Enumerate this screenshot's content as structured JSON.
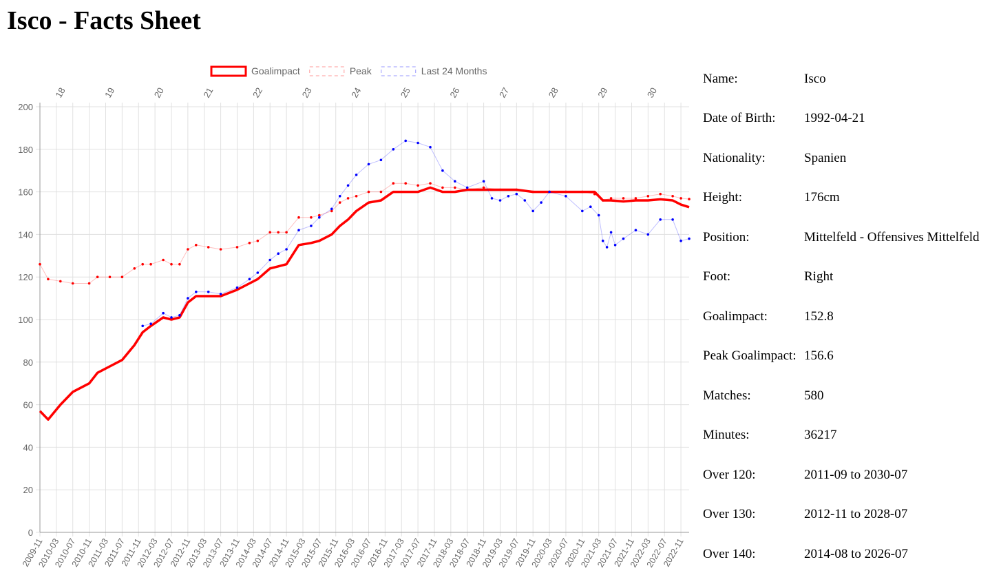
{
  "page_title": "Isco - Facts Sheet",
  "facts": [
    {
      "label": "Name:",
      "value": "Isco"
    },
    {
      "label": "Date of Birth:",
      "value": "1992-04-21"
    },
    {
      "label": "Nationality:",
      "value": "Spanien"
    },
    {
      "label": "Height:",
      "value": "176cm"
    },
    {
      "label": "Position:",
      "value": "Mittelfeld - Offensives Mittelfeld"
    },
    {
      "label": "Foot:",
      "value": "Right"
    },
    {
      "label": "Goalimpact:",
      "value": "152.8"
    },
    {
      "label": "Peak Goalimpact:",
      "value": "156.6"
    },
    {
      "label": "Matches:",
      "value": "580"
    },
    {
      "label": "Minutes:",
      "value": "36217"
    },
    {
      "label": "Over 120:",
      "value": "2011-09 to 2030-07"
    },
    {
      "label": "Over 130:",
      "value": "2012-11 to 2028-07"
    },
    {
      "label": "Over 140:",
      "value": "2014-08 to 2026-07"
    }
  ],
  "chart_data": {
    "type": "line",
    "x_start": "2009-11",
    "x_end": "2023-01",
    "x_tick_labels": [
      "2009-11",
      "2010-03",
      "2010-07",
      "2010-11",
      "2011-03",
      "2011-07",
      "2011-11",
      "2012-03",
      "2012-07",
      "2012-11",
      "2013-03",
      "2013-07",
      "2013-11",
      "2014-03",
      "2014-07",
      "2014-11",
      "2015-03",
      "2015-07",
      "2015-11",
      "2016-03",
      "2016-07",
      "2016-11",
      "2017-03",
      "2017-07",
      "2017-11",
      "2018-03",
      "2018-07",
      "2018-11",
      "2019-03",
      "2019-07",
      "2019-11",
      "2020-03",
      "2020-07",
      "2020-11",
      "2021-03",
      "2021-07",
      "2021-11",
      "2022-03",
      "2022-07",
      "2022-11"
    ],
    "age_axis": [
      {
        "label": "18",
        "date": "2010-04"
      },
      {
        "label": "19",
        "date": "2011-04"
      },
      {
        "label": "20",
        "date": "2012-04"
      },
      {
        "label": "21",
        "date": "2013-04"
      },
      {
        "label": "22",
        "date": "2014-04"
      },
      {
        "label": "23",
        "date": "2015-04"
      },
      {
        "label": "24",
        "date": "2016-04"
      },
      {
        "label": "25",
        "date": "2017-04"
      },
      {
        "label": "26",
        "date": "2018-04"
      },
      {
        "label": "27",
        "date": "2019-04"
      },
      {
        "label": "28",
        "date": "2020-04"
      },
      {
        "label": "29",
        "date": "2021-04"
      },
      {
        "label": "30",
        "date": "2022-04"
      }
    ],
    "ylim": [
      0,
      200
    ],
    "y_ticks": [
      0,
      20,
      40,
      60,
      80,
      100,
      120,
      140,
      160,
      180,
      200
    ],
    "grid": true,
    "legend_position": "top",
    "series": [
      {
        "name": "Goalimpact",
        "color": "#ff0000",
        "style": "solid-thick",
        "points": [
          [
            "2009-11",
            57
          ],
          [
            "2010-01",
            53
          ],
          [
            "2010-04",
            60
          ],
          [
            "2010-07",
            66
          ],
          [
            "2010-11",
            70
          ],
          [
            "2011-01",
            75
          ],
          [
            "2011-04",
            78
          ],
          [
            "2011-07",
            81
          ],
          [
            "2011-10",
            88
          ],
          [
            "2011-12",
            94
          ],
          [
            "2012-02",
            97
          ],
          [
            "2012-05",
            101
          ],
          [
            "2012-07",
            100
          ],
          [
            "2012-09",
            101
          ],
          [
            "2012-11",
            108
          ],
          [
            "2013-01",
            111
          ],
          [
            "2013-04",
            111
          ],
          [
            "2013-07",
            111
          ],
          [
            "2013-11",
            114
          ],
          [
            "2014-02",
            117
          ],
          [
            "2014-04",
            119
          ],
          [
            "2014-07",
            124
          ],
          [
            "2014-09",
            125
          ],
          [
            "2014-11",
            126
          ],
          [
            "2015-02",
            135
          ],
          [
            "2015-05",
            136
          ],
          [
            "2015-07",
            137
          ],
          [
            "2015-10",
            140
          ],
          [
            "2015-12",
            144
          ],
          [
            "2016-02",
            147
          ],
          [
            "2016-04",
            151
          ],
          [
            "2016-07",
            155
          ],
          [
            "2016-10",
            156
          ],
          [
            "2017-01",
            160
          ],
          [
            "2017-04",
            160
          ],
          [
            "2017-07",
            160
          ],
          [
            "2017-10",
            162
          ],
          [
            "2018-01",
            160
          ],
          [
            "2018-04",
            160
          ],
          [
            "2018-07",
            161
          ],
          [
            "2018-11",
            161
          ],
          [
            "2019-03",
            161
          ],
          [
            "2019-07",
            161
          ],
          [
            "2019-11",
            160
          ],
          [
            "2020-03",
            160
          ],
          [
            "2020-07",
            160
          ],
          [
            "2020-11",
            160
          ],
          [
            "2021-02",
            160
          ],
          [
            "2021-04",
            156
          ],
          [
            "2021-06",
            156
          ],
          [
            "2021-09",
            155.5
          ],
          [
            "2021-12",
            156
          ],
          [
            "2022-03",
            156
          ],
          [
            "2022-06",
            156.5
          ],
          [
            "2022-09",
            156
          ],
          [
            "2022-11",
            154
          ],
          [
            "2023-01",
            152.8
          ]
        ]
      },
      {
        "name": "Peak",
        "color": "#ff0000",
        "style": "dotted",
        "points": [
          [
            "2009-11",
            126
          ],
          [
            "2010-01",
            119
          ],
          [
            "2010-04",
            118
          ],
          [
            "2010-07",
            117
          ],
          [
            "2010-11",
            117
          ],
          [
            "2011-01",
            120
          ],
          [
            "2011-04",
            120
          ],
          [
            "2011-07",
            120
          ],
          [
            "2011-10",
            124
          ],
          [
            "2011-12",
            126
          ],
          [
            "2012-02",
            126
          ],
          [
            "2012-05",
            128
          ],
          [
            "2012-07",
            126
          ],
          [
            "2012-09",
            126
          ],
          [
            "2012-11",
            133
          ],
          [
            "2013-01",
            135
          ],
          [
            "2013-04",
            134
          ],
          [
            "2013-07",
            133
          ],
          [
            "2013-11",
            134
          ],
          [
            "2014-02",
            136
          ],
          [
            "2014-04",
            137
          ],
          [
            "2014-07",
            141
          ],
          [
            "2014-09",
            141
          ],
          [
            "2014-11",
            141
          ],
          [
            "2015-02",
            148
          ],
          [
            "2015-05",
            148
          ],
          [
            "2015-07",
            149
          ],
          [
            "2015-10",
            151
          ],
          [
            "2015-12",
            155
          ],
          [
            "2016-02",
            157
          ],
          [
            "2016-04",
            158
          ],
          [
            "2016-07",
            160
          ],
          [
            "2016-10",
            160
          ],
          [
            "2017-01",
            164
          ],
          [
            "2017-04",
            164
          ],
          [
            "2017-07",
            163
          ],
          [
            "2017-10",
            164
          ],
          [
            "2018-01",
            162
          ],
          [
            "2018-04",
            162
          ],
          [
            "2018-07",
            161
          ],
          [
            "2018-11",
            162
          ],
          [
            "2019-03",
            161
          ],
          [
            "2019-07",
            161
          ],
          [
            "2019-11",
            160
          ],
          [
            "2020-03",
            160
          ],
          [
            "2020-07",
            160
          ],
          [
            "2020-11",
            160
          ],
          [
            "2021-02",
            159
          ],
          [
            "2021-04",
            156
          ],
          [
            "2021-06",
            157
          ],
          [
            "2021-09",
            157
          ],
          [
            "2021-12",
            157
          ],
          [
            "2022-03",
            158
          ],
          [
            "2022-06",
            159
          ],
          [
            "2022-09",
            158
          ],
          [
            "2022-11",
            157
          ],
          [
            "2023-01",
            156.6
          ]
        ]
      },
      {
        "name": "Last 24 Months",
        "color": "#0000ff",
        "style": "dotted",
        "points": [
          [
            "2011-12",
            97
          ],
          [
            "2012-02",
            98
          ],
          [
            "2012-05",
            103
          ],
          [
            "2012-07",
            101
          ],
          [
            "2012-09",
            102
          ],
          [
            "2012-11",
            110
          ],
          [
            "2013-01",
            113
          ],
          [
            "2013-04",
            113
          ],
          [
            "2013-07",
            112
          ],
          [
            "2013-11",
            115
          ],
          [
            "2014-02",
            119
          ],
          [
            "2014-04",
            122
          ],
          [
            "2014-07",
            128
          ],
          [
            "2014-09",
            131
          ],
          [
            "2014-11",
            133
          ],
          [
            "2015-02",
            142
          ],
          [
            "2015-05",
            144
          ],
          [
            "2015-07",
            148
          ],
          [
            "2015-10",
            152
          ],
          [
            "2015-12",
            158
          ],
          [
            "2016-02",
            163
          ],
          [
            "2016-04",
            168
          ],
          [
            "2016-07",
            173
          ],
          [
            "2016-10",
            175
          ],
          [
            "2017-01",
            180
          ],
          [
            "2017-04",
            184
          ],
          [
            "2017-07",
            183
          ],
          [
            "2017-10",
            181
          ],
          [
            "2018-01",
            170
          ],
          [
            "2018-04",
            165
          ],
          [
            "2018-07",
            162
          ],
          [
            "2018-11",
            165
          ],
          [
            "2019-01",
            157
          ],
          [
            "2019-03",
            156
          ],
          [
            "2019-05",
            158
          ],
          [
            "2019-07",
            159
          ],
          [
            "2019-09",
            156
          ],
          [
            "2019-11",
            151
          ],
          [
            "2020-01",
            155
          ],
          [
            "2020-03",
            160
          ],
          [
            "2020-07",
            158
          ],
          [
            "2020-11",
            151
          ],
          [
            "2021-01",
            153
          ],
          [
            "2021-03",
            149
          ],
          [
            "2021-04",
            137
          ],
          [
            "2021-05",
            134
          ],
          [
            "2021-06",
            141
          ],
          [
            "2021-07",
            135
          ],
          [
            "2021-09",
            138
          ],
          [
            "2021-12",
            142
          ],
          [
            "2022-03",
            140
          ],
          [
            "2022-06",
            147
          ],
          [
            "2022-09",
            147
          ],
          [
            "2022-11",
            137
          ],
          [
            "2023-01",
            138
          ]
        ]
      }
    ]
  }
}
